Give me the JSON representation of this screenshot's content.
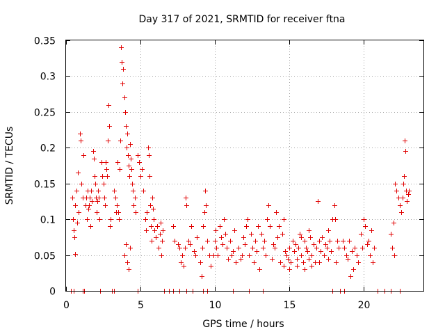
{
  "chart_data": {
    "type": "scatter",
    "title": "Day 317 of 2021, SRMTID for receiver ftna",
    "xlabel": "GPS time / hours",
    "ylabel": "SRMTID / TECUs",
    "xlim": [
      0,
      24
    ],
    "ylim": [
      0,
      0.35
    ],
    "xticks": [
      0,
      5,
      10,
      15,
      20
    ],
    "xtick_labels": [
      "0",
      "5",
      "10",
      "15",
      "20"
    ],
    "yticks": [
      0,
      0.05,
      0.1,
      0.15,
      0.2,
      0.25,
      0.3,
      0.35
    ],
    "ytick_labels": [
      "0",
      "0.05",
      "0.1",
      "0.15",
      "0.2",
      "0.25",
      "0.3",
      "0.35"
    ],
    "grid": true,
    "marker": "plus",
    "color": "#e00000",
    "series": [
      {
        "name": "SRMTID",
        "points": [
          [
            0.35,
            0.0
          ],
          [
            0.5,
            0.0
          ],
          [
            1.1,
            0.0
          ],
          [
            1.2,
            0.0
          ],
          [
            2.3,
            0.0
          ],
          [
            3.1,
            0.0
          ],
          [
            3.2,
            0.0
          ],
          [
            4.8,
            0.0
          ],
          [
            6.6,
            0.0
          ],
          [
            6.9,
            0.0
          ],
          [
            7.2,
            0.0
          ],
          [
            7.6,
            0.0
          ],
          [
            8.1,
            0.0
          ],
          [
            8.5,
            0.0
          ],
          [
            9.2,
            0.0
          ],
          [
            9.5,
            0.0
          ],
          [
            11.2,
            0.0
          ],
          [
            12.3,
            0.0
          ],
          [
            13.2,
            0.0
          ],
          [
            17.9,
            0.0
          ],
          [
            18.4,
            0.0
          ],
          [
            18.7,
            0.0
          ],
          [
            20.9,
            0.0
          ],
          [
            21.4,
            0.0
          ],
          [
            21.8,
            0.0
          ],
          [
            22.4,
            0.0
          ],
          [
            0.4,
            0.13
          ],
          [
            0.45,
            0.1
          ],
          [
            0.5,
            0.085
          ],
          [
            0.55,
            0.075
          ],
          [
            0.6,
            0.12
          ],
          [
            0.62,
            0.052
          ],
          [
            0.7,
            0.14
          ],
          [
            0.75,
            0.095
          ],
          [
            0.8,
            0.165
          ],
          [
            0.85,
            0.11
          ],
          [
            0.95,
            0.22
          ],
          [
            1.0,
            0.21
          ],
          [
            1.05,
            0.15
          ],
          [
            1.1,
            0.13
          ],
          [
            1.15,
            0.19
          ],
          [
            1.3,
            0.12
          ],
          [
            1.35,
            0.13
          ],
          [
            1.4,
            0.1
          ],
          [
            1.45,
            0.14
          ],
          [
            1.5,
            0.115
          ],
          [
            1.55,
            0.12
          ],
          [
            1.6,
            0.13
          ],
          [
            1.65,
            0.09
          ],
          [
            1.7,
            0.14
          ],
          [
            1.75,
            0.125
          ],
          [
            1.8,
            0.195
          ],
          [
            1.85,
            0.185
          ],
          [
            1.9,
            0.16
          ],
          [
            1.95,
            0.15
          ],
          [
            2.0,
            0.13
          ],
          [
            2.05,
            0.11
          ],
          [
            2.1,
            0.125
          ],
          [
            2.15,
            0.14
          ],
          [
            2.2,
            0.13
          ],
          [
            2.25,
            0.1
          ],
          [
            2.4,
            0.18
          ],
          [
            2.45,
            0.16
          ],
          [
            2.5,
            0.15
          ],
          [
            2.55,
            0.13
          ],
          [
            2.6,
            0.12
          ],
          [
            2.65,
            0.18
          ],
          [
            2.7,
            0.17
          ],
          [
            2.75,
            0.16
          ],
          [
            2.8,
            0.21
          ],
          [
            2.85,
            0.26
          ],
          [
            2.9,
            0.23
          ],
          [
            2.95,
            0.09
          ],
          [
            3.0,
            0.1
          ],
          [
            3.2,
            0.14
          ],
          [
            3.3,
            0.13
          ],
          [
            3.35,
            0.11
          ],
          [
            3.4,
            0.12
          ],
          [
            3.45,
            0.18
          ],
          [
            3.5,
            0.11
          ],
          [
            3.55,
            0.1
          ],
          [
            3.6,
            0.17
          ],
          [
            3.65,
            0.21
          ],
          [
            3.7,
            0.34
          ],
          [
            3.75,
            0.32
          ],
          [
            3.8,
            0.29
          ],
          [
            3.85,
            0.31
          ],
          [
            3.9,
            0.27
          ],
          [
            3.95,
            0.25
          ],
          [
            4.0,
            0.23
          ],
          [
            4.05,
            0.2
          ],
          [
            4.1,
            0.22
          ],
          [
            4.15,
            0.19
          ],
          [
            4.2,
            0.175
          ],
          [
            4.25,
            0.16
          ],
          [
            4.3,
            0.205
          ],
          [
            4.35,
            0.185
          ],
          [
            4.4,
            0.17
          ],
          [
            4.45,
            0.15
          ],
          [
            4.5,
            0.14
          ],
          [
            4.55,
            0.12
          ],
          [
            4.6,
            0.13
          ],
          [
            4.65,
            0.11
          ],
          [
            3.9,
            0.05
          ],
          [
            4.0,
            0.065
          ],
          [
            4.1,
            0.04
          ],
          [
            4.2,
            0.03
          ],
          [
            4.3,
            0.06
          ],
          [
            4.8,
            0.19
          ],
          [
            4.9,
            0.18
          ],
          [
            5.0,
            0.16
          ],
          [
            5.1,
            0.17
          ],
          [
            5.2,
            0.14
          ],
          [
            5.3,
            0.1
          ],
          [
            5.35,
            0.085
          ],
          [
            5.4,
            0.11
          ],
          [
            5.5,
            0.2
          ],
          [
            5.55,
            0.19
          ],
          [
            5.6,
            0.16
          ],
          [
            5.65,
            0.12
          ],
          [
            5.7,
            0.09
          ],
          [
            5.75,
            0.07
          ],
          [
            5.8,
            0.13
          ],
          [
            5.85,
            0.115
          ],
          [
            5.9,
            0.1
          ],
          [
            5.95,
            0.085
          ],
          [
            6.0,
            0.075
          ],
          [
            6.1,
            0.09
          ],
          [
            6.2,
            0.06
          ],
          [
            6.3,
            0.08
          ],
          [
            6.35,
            0.095
          ],
          [
            6.4,
            0.05
          ],
          [
            6.45,
            0.07
          ],
          [
            6.5,
            0.085
          ],
          [
            7.2,
            0.09
          ],
          [
            7.3,
            0.07
          ],
          [
            7.5,
            0.065
          ],
          [
            7.6,
            0.06
          ],
          [
            7.7,
            0.04
          ],
          [
            7.8,
            0.05
          ],
          [
            7.9,
            0.035
          ],
          [
            8.0,
            0.06
          ],
          [
            8.05,
            0.13
          ],
          [
            8.1,
            0.12
          ],
          [
            8.2,
            0.07
          ],
          [
            8.3,
            0.065
          ],
          [
            8.4,
            0.09
          ],
          [
            8.6,
            0.055
          ],
          [
            8.7,
            0.05
          ],
          [
            8.8,
            0.075
          ],
          [
            9.0,
            0.04
          ],
          [
            9.1,
            0.02
          ],
          [
            9.15,
            0.06
          ],
          [
            9.2,
            0.09
          ],
          [
            9.3,
            0.11
          ],
          [
            9.35,
            0.14
          ],
          [
            9.4,
            0.12
          ],
          [
            9.5,
            0.07
          ],
          [
            9.6,
            0.05
          ],
          [
            9.7,
            0.035
          ],
          [
            9.9,
            0.05
          ],
          [
            10.0,
            0.07
          ],
          [
            10.05,
            0.085
          ],
          [
            10.1,
            0.06
          ],
          [
            10.2,
            0.05
          ],
          [
            10.3,
            0.09
          ],
          [
            10.4,
            0.075
          ],
          [
            10.5,
            0.065
          ],
          [
            10.6,
            0.1
          ],
          [
            10.7,
            0.08
          ],
          [
            10.8,
            0.06
          ],
          [
            10.9,
            0.045
          ],
          [
            11.0,
            0.07
          ],
          [
            11.1,
            0.05
          ],
          [
            11.2,
            0.055
          ],
          [
            11.3,
            0.085
          ],
          [
            11.4,
            0.04
          ],
          [
            11.6,
            0.06
          ],
          [
            11.7,
            0.045
          ],
          [
            11.8,
            0.05
          ],
          [
            11.9,
            0.075
          ],
          [
            12.0,
            0.065
          ],
          [
            12.1,
            0.09
          ],
          [
            12.2,
            0.1
          ],
          [
            12.3,
            0.05
          ],
          [
            12.4,
            0.08
          ],
          [
            12.5,
            0.06
          ],
          [
            12.6,
            0.04
          ],
          [
            12.7,
            0.07
          ],
          [
            12.8,
            0.055
          ],
          [
            12.9,
            0.09
          ],
          [
            13.0,
            0.03
          ],
          [
            13.1,
            0.08
          ],
          [
            13.2,
            0.06
          ],
          [
            13.3,
            0.07
          ],
          [
            13.4,
            0.05
          ],
          [
            13.5,
            0.1
          ],
          [
            13.6,
            0.12
          ],
          [
            13.7,
            0.09
          ],
          [
            13.8,
            0.045
          ],
          [
            13.9,
            0.065
          ],
          [
            14.0,
            0.06
          ],
          [
            14.1,
            0.11
          ],
          [
            14.2,
            0.075
          ],
          [
            14.3,
            0.09
          ],
          [
            14.4,
            0.04
          ],
          [
            14.5,
            0.08
          ],
          [
            14.6,
            0.1
          ],
          [
            14.7,
            0.055
          ],
          [
            14.8,
            0.05
          ],
          [
            14.9,
            0.045
          ],
          [
            15.0,
            0.06
          ],
          [
            15.1,
            0.04
          ],
          [
            15.2,
            0.07
          ],
          [
            15.3,
            0.055
          ],
          [
            15.4,
            0.065
          ],
          [
            15.5,
            0.045
          ],
          [
            15.6,
            0.06
          ],
          [
            15.7,
            0.08
          ],
          [
            15.8,
            0.05
          ],
          [
            15.9,
            0.04
          ],
          [
            16.0,
            0.07
          ],
          [
            16.1,
            0.06
          ],
          [
            16.2,
            0.055
          ],
          [
            16.3,
            0.045
          ],
          [
            16.4,
            0.075
          ],
          [
            16.5,
            0.05
          ],
          [
            16.6,
            0.065
          ],
          [
            16.7,
            0.04
          ],
          [
            16.8,
            0.06
          ],
          [
            16.9,
            0.125
          ],
          [
            17.0,
            0.07
          ],
          [
            17.1,
            0.055
          ],
          [
            17.2,
            0.075
          ],
          [
            17.3,
            0.05
          ],
          [
            17.4,
            0.065
          ],
          [
            17.5,
            0.06
          ],
          [
            17.6,
            0.045
          ],
          [
            17.7,
            0.07
          ],
          [
            17.8,
            0.055
          ],
          [
            17.9,
            0.1
          ],
          [
            18.0,
            0.12
          ],
          [
            18.05,
            0.1
          ],
          [
            18.1,
            0.04
          ],
          [
            18.2,
            0.07
          ],
          [
            18.3,
            0.06
          ],
          [
            15.0,
            0.03
          ],
          [
            15.5,
            0.035
          ],
          [
            16.0,
            0.03
          ],
          [
            16.5,
            0.035
          ],
          [
            17.0,
            0.04
          ],
          [
            14.6,
            0.035
          ],
          [
            15.8,
            0.075
          ],
          [
            16.3,
            0.085
          ],
          [
            17.6,
            0.085
          ],
          [
            18.6,
            0.07
          ],
          [
            18.7,
            0.06
          ],
          [
            18.8,
            0.05
          ],
          [
            18.9,
            0.045
          ],
          [
            19.0,
            0.07
          ],
          [
            19.1,
            0.02
          ],
          [
            19.2,
            0.055
          ],
          [
            19.3,
            0.03
          ],
          [
            19.4,
            0.06
          ],
          [
            19.5,
            0.05
          ],
          [
            19.6,
            0.04
          ],
          [
            19.8,
            0.08
          ],
          [
            19.9,
            0.06
          ],
          [
            20.0,
            0.1
          ],
          [
            20.1,
            0.09
          ],
          [
            20.2,
            0.065
          ],
          [
            20.3,
            0.07
          ],
          [
            20.4,
            0.05
          ],
          [
            20.5,
            0.085
          ],
          [
            20.6,
            0.04
          ],
          [
            20.7,
            0.06
          ],
          [
            21.8,
            0.08
          ],
          [
            21.9,
            0.06
          ],
          [
            22.0,
            0.095
          ],
          [
            22.05,
            0.05
          ],
          [
            22.1,
            0.15
          ],
          [
            22.2,
            0.14
          ],
          [
            22.3,
            0.13
          ],
          [
            22.4,
            0.12
          ],
          [
            22.5,
            0.11
          ],
          [
            22.6,
            0.13
          ],
          [
            22.65,
            0.15
          ],
          [
            22.7,
            0.16
          ],
          [
            22.75,
            0.21
          ],
          [
            22.8,
            0.195
          ],
          [
            22.85,
            0.14
          ],
          [
            22.9,
            0.125
          ],
          [
            22.95,
            0.135
          ],
          [
            23.0,
            0.14
          ]
        ]
      }
    ]
  }
}
